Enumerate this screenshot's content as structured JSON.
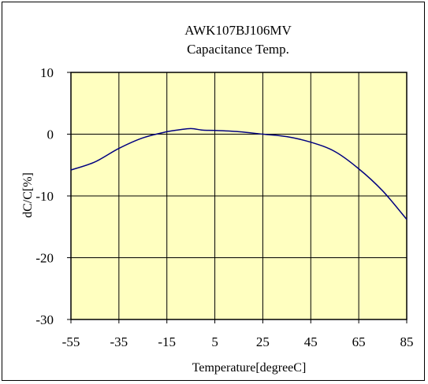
{
  "chart_data": {
    "type": "line",
    "title": "AWK107BJ106MV",
    "subtitle": "Capacitance Temp.",
    "xlabel": "Temperature[degreeC]",
    "ylabel": "dC/C[%]",
    "xlim": [
      -55,
      85
    ],
    "ylim": [
      -30,
      10
    ],
    "x_ticks": [
      "-55",
      "-35",
      "-15",
      "5",
      "25",
      "45",
      "65",
      "85"
    ],
    "y_ticks": [
      "10",
      "0",
      "-10",
      "-20",
      "-30"
    ],
    "grid": true,
    "plot_background": "#ffffc0",
    "line_color": "#000080",
    "series": [
      {
        "x": [
          -55,
          -45,
          -35,
          -25,
          -15,
          -10,
          -5,
          0,
          5,
          15,
          25,
          35,
          45,
          55,
          65,
          75,
          85
        ],
        "y": [
          -5.8,
          -4.5,
          -2.3,
          -0.6,
          0.4,
          0.7,
          0.9,
          0.65,
          0.6,
          0.4,
          0.0,
          -0.4,
          -1.3,
          -2.8,
          -5.6,
          -9.2,
          -13.8
        ]
      }
    ]
  }
}
